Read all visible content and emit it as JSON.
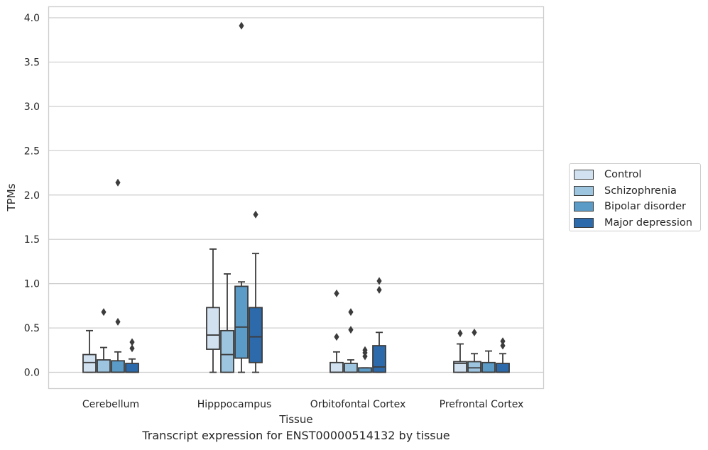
{
  "chart_data": {
    "type": "box",
    "title": "Transcript expression for ENST00000514132 by tissue",
    "xlabel": "Tissue",
    "ylabel": "TPMs",
    "ylim": [
      -0.18,
      4.12
    ],
    "yticks": [
      "0.0",
      "0.5",
      "1.0",
      "1.5",
      "2.0",
      "2.5",
      "3.0",
      "3.5",
      "4.0"
    ],
    "categories": [
      "Cerebellum",
      "Hipppocampus",
      "Orbitofontal Cortex",
      "Prefrontal Cortex"
    ],
    "grid": true,
    "legend_position": "right, outside plot",
    "series": [
      {
        "name": "Control",
        "color": "#d1e1f0",
        "boxes": [
          {
            "whislo": 0.0,
            "q1": 0.0,
            "med": 0.11,
            "q3": 0.2,
            "whishi": 0.47,
            "fliers": []
          },
          {
            "whislo": 0.0,
            "q1": 0.26,
            "med": 0.42,
            "q3": 0.73,
            "whishi": 1.39,
            "fliers": []
          },
          {
            "whislo": 0.0,
            "q1": 0.0,
            "med": 0.0,
            "q3": 0.11,
            "whishi": 0.23,
            "fliers": [
              0.89,
              0.4
            ]
          },
          {
            "whislo": 0.0,
            "q1": 0.0,
            "med": 0.1,
            "q3": 0.12,
            "whishi": 0.32,
            "fliers": [
              0.44
            ]
          }
        ]
      },
      {
        "name": "Schizophrenia",
        "color": "#9dc5df",
        "boxes": [
          {
            "whislo": 0.0,
            "q1": 0.0,
            "med": 0.0,
            "q3": 0.14,
            "whishi": 0.28,
            "fliers": [
              0.68
            ]
          },
          {
            "whislo": 0.0,
            "q1": 0.0,
            "med": 0.2,
            "q3": 0.47,
            "whishi": 1.11,
            "fliers": []
          },
          {
            "whislo": 0.0,
            "q1": 0.0,
            "med": 0.0,
            "q3": 0.1,
            "whishi": 0.14,
            "fliers": [
              0.68,
              0.48
            ]
          },
          {
            "whislo": 0.0,
            "q1": 0.0,
            "med": 0.05,
            "q3": 0.12,
            "whishi": 0.21,
            "fliers": [
              0.45
            ]
          }
        ]
      },
      {
        "name": "Bipolar disorder",
        "color": "#5b9bc7",
        "boxes": [
          {
            "whislo": 0.0,
            "q1": 0.0,
            "med": 0.0,
            "q3": 0.13,
            "whishi": 0.23,
            "fliers": [
              2.14,
              0.57
            ]
          },
          {
            "whislo": 0.0,
            "q1": 0.16,
            "med": 0.51,
            "q3": 0.97,
            "whishi": 1.02,
            "fliers": [
              3.91
            ]
          },
          {
            "whislo": 0.0,
            "q1": 0.0,
            "med": 0.0,
            "q3": 0.05,
            "whishi": 0.05,
            "fliers": [
              0.25,
              0.22,
              0.18
            ]
          },
          {
            "whislo": 0.0,
            "q1": 0.0,
            "med": 0.0,
            "q3": 0.11,
            "whishi": 0.24,
            "fliers": []
          }
        ]
      },
      {
        "name": "Major depression",
        "color": "#2d6aab",
        "boxes": [
          {
            "whislo": 0.0,
            "q1": 0.0,
            "med": 0.0,
            "q3": 0.1,
            "whishi": 0.15,
            "fliers": [
              0.34,
              0.27
            ]
          },
          {
            "whislo": 0.0,
            "q1": 0.11,
            "med": 0.4,
            "q3": 0.73,
            "whishi": 1.34,
            "fliers": [
              1.78
            ]
          },
          {
            "whislo": 0.0,
            "q1": 0.0,
            "med": 0.06,
            "q3": 0.3,
            "whishi": 0.45,
            "fliers": [
              1.03,
              0.93
            ]
          },
          {
            "whislo": 0.0,
            "q1": 0.0,
            "med": 0.0,
            "q3": 0.1,
            "whishi": 0.21,
            "fliers": [
              0.35,
              0.3
            ]
          }
        ]
      }
    ]
  }
}
